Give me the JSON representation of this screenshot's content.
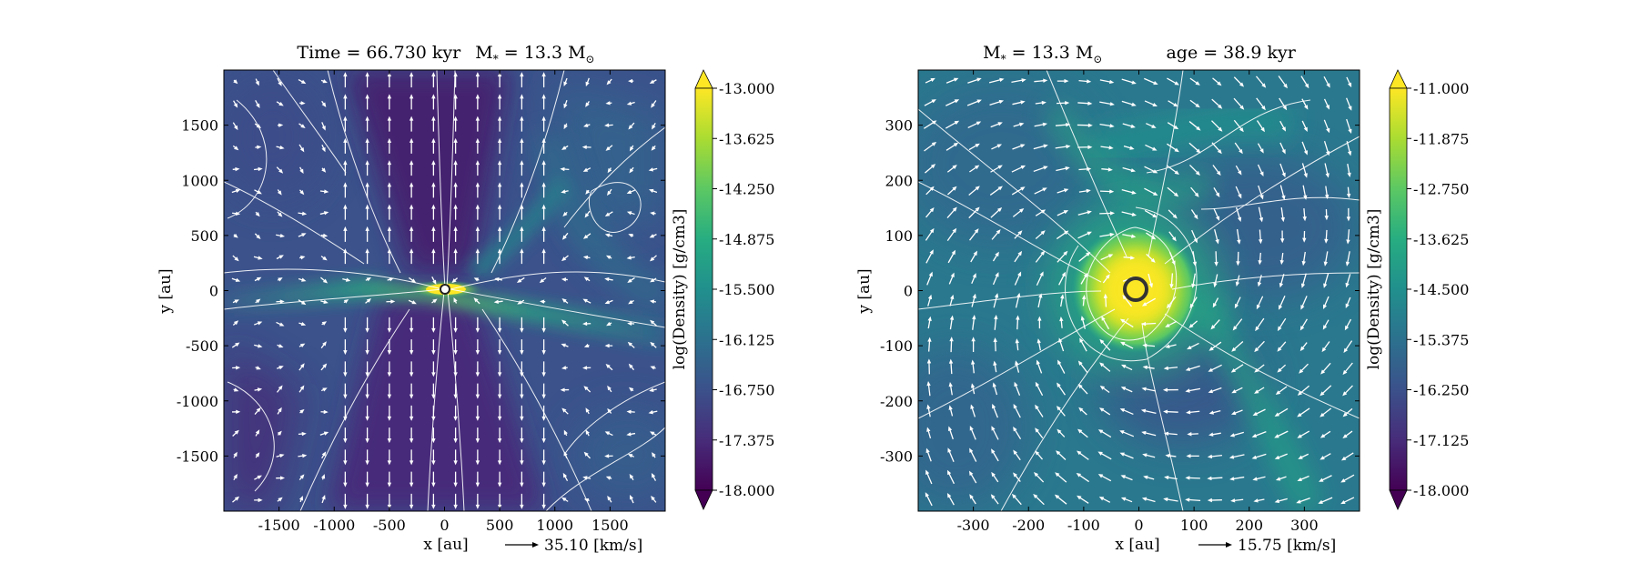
{
  "chart_data": [
    {
      "type": "heatmap",
      "title_parts": {
        "time_label": "Time = 66.730 kyr",
        "mass_label": "M",
        "mass_sub": "*",
        "mass_value": " = 13.3 M",
        "mass_unit_sub": "⊙"
      },
      "xlabel": "x [au]",
      "ylabel": "y [au]",
      "xlim": [
        -2000,
        2000
      ],
      "ylim": [
        -2000,
        2000
      ],
      "x_ticks": [
        -1500,
        -1000,
        -500,
        0,
        500,
        1000,
        1500
      ],
      "y_ticks": [
        -1500,
        -1000,
        -500,
        0,
        500,
        1000,
        1500
      ],
      "x_tick_labels": [
        "-1500",
        "-1000",
        "-500",
        "0",
        "500",
        "1000",
        "1500"
      ],
      "y_tick_labels": [
        "-1500",
        "-1000",
        "-500",
        "0",
        "500",
        "1000",
        "1500"
      ],
      "quiver_key": {
        "label": "35.10 [km/s]"
      },
      "colorbar": {
        "label": "log(Density) [g/cm3]",
        "range": [
          -18.0,
          -13.0
        ],
        "ticks": [
          "-13.000",
          "-13.625",
          "-14.250",
          "-14.875",
          "-15.500",
          "-16.125",
          "-16.750",
          "-17.375",
          "-18.000"
        ],
        "colormap": "viridis"
      }
    },
    {
      "type": "heatmap",
      "title_parts": {
        "mass_label": "M",
        "mass_sub": "*",
        "mass_value": " = 13.3 M",
        "mass_unit_sub": "⊙",
        "age_label": "age = 38.9 kyr"
      },
      "xlabel": "x [au]",
      "ylabel": "y [au]",
      "xlim": [
        -400,
        400
      ],
      "ylim": [
        -400,
        400
      ],
      "x_ticks": [
        -300,
        -200,
        -100,
        0,
        100,
        200,
        300
      ],
      "y_ticks": [
        -300,
        -200,
        -100,
        0,
        100,
        200,
        300
      ],
      "x_tick_labels": [
        "-300",
        "-200",
        "-100",
        "0",
        "100",
        "200",
        "300"
      ],
      "y_tick_labels": [
        "-300",
        "-200",
        "-100",
        "0",
        "100",
        "200",
        "300"
      ],
      "quiver_key": {
        "label": "15.75 [km/s]"
      },
      "colorbar": {
        "label": "log(Density) [g/cm3]",
        "range": [
          -18.0,
          -11.0
        ],
        "ticks": [
          "-11.000",
          "-11.875",
          "-12.750",
          "-13.625",
          "-14.500",
          "-15.375",
          "-16.250",
          "-17.125",
          "-18.000"
        ],
        "colormap": "viridis"
      }
    }
  ]
}
